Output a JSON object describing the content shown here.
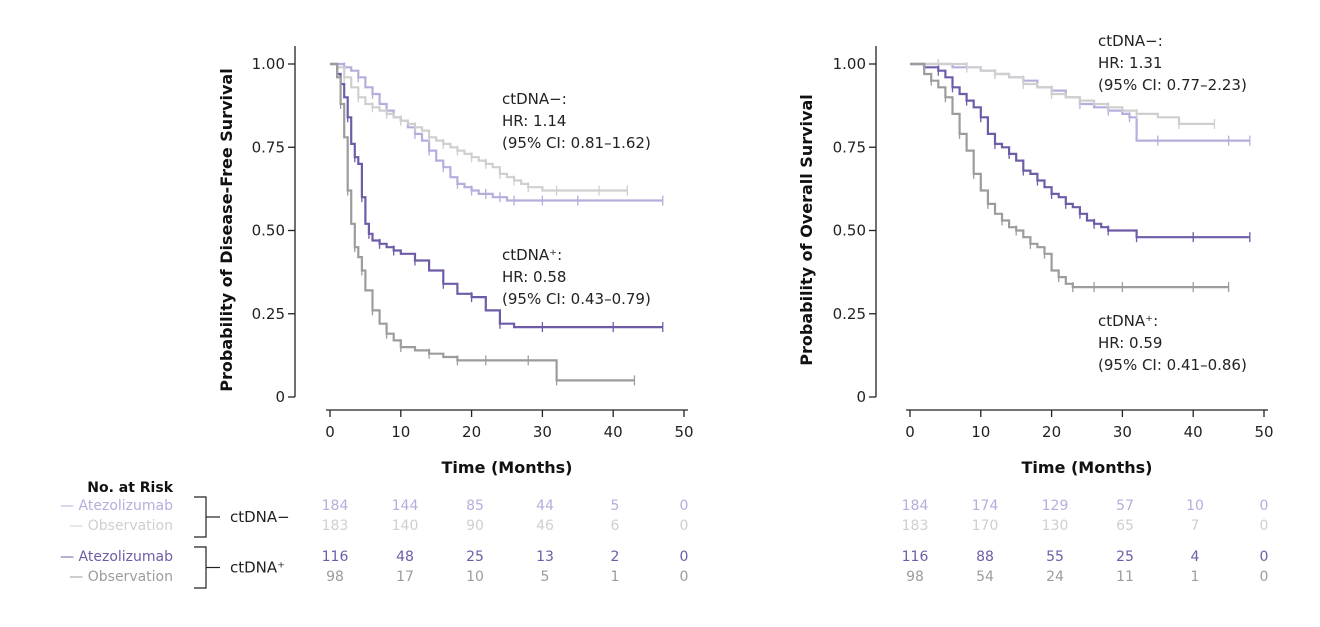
{
  "colors": {
    "atezo_neg": "#b5aedd",
    "obs_neg": "#cfcfcf",
    "atezo_pos": "#6f5ca8",
    "obs_pos": "#9c9c9c",
    "text": "#222222"
  },
  "chart_data": [
    {
      "type": "line",
      "ylabel": "Probability of Disease-Free Survival",
      "xlabel": "Time (Months)",
      "xlim": [
        0,
        50
      ],
      "ylim": [
        0,
        1
      ],
      "xticks": [
        "0",
        "10",
        "20",
        "30",
        "40",
        "50"
      ],
      "yticks": [
        "0",
        "0.25",
        "0.50",
        "0.75",
        "1.00"
      ],
      "annotations": [
        {
          "key": "neg",
          "lines": [
            "ctDNA−:",
            "HR: 1.14",
            "(95% CI: 0.81–1.62)"
          ]
        },
        {
          "key": "pos",
          "lines": [
            "ctDNA⁺:",
            "HR: 0.58",
            "(95% CI: 0.43–0.79)"
          ]
        }
      ],
      "series": [
        {
          "group": "ctDNA−",
          "arm": "Atezolizumab",
          "color_key": "atezo_neg",
          "x": [
            0,
            1,
            2,
            3,
            4,
            5,
            6,
            7,
            8,
            9,
            10,
            11,
            12,
            13,
            14,
            15,
            16,
            17,
            18,
            19,
            20,
            21,
            22,
            23,
            24,
            25,
            26,
            28,
            30,
            32,
            35,
            40,
            47
          ],
          "y": [
            1.0,
            1.0,
            0.99,
            0.98,
            0.96,
            0.93,
            0.91,
            0.88,
            0.86,
            0.84,
            0.83,
            0.81,
            0.79,
            0.77,
            0.74,
            0.71,
            0.69,
            0.66,
            0.64,
            0.63,
            0.62,
            0.61,
            0.61,
            0.6,
            0.6,
            0.59,
            0.59,
            0.59,
            0.59,
            0.59,
            0.59,
            0.59,
            0.59
          ]
        },
        {
          "group": "ctDNA−",
          "arm": "Observation",
          "color_key": "obs_neg",
          "x": [
            0,
            1,
            2,
            3,
            4,
            5,
            6,
            7,
            8,
            9,
            10,
            11,
            12,
            13,
            14,
            15,
            16,
            17,
            18,
            19,
            20,
            21,
            22,
            23,
            24,
            25,
            26,
            27,
            28,
            30,
            32,
            35,
            38,
            42
          ],
          "y": [
            1.0,
            0.99,
            0.96,
            0.93,
            0.9,
            0.88,
            0.87,
            0.86,
            0.85,
            0.84,
            0.83,
            0.82,
            0.81,
            0.8,
            0.78,
            0.77,
            0.76,
            0.75,
            0.74,
            0.73,
            0.72,
            0.71,
            0.7,
            0.69,
            0.67,
            0.66,
            0.65,
            0.64,
            0.63,
            0.62,
            0.62,
            0.62,
            0.62,
            0.62
          ]
        },
        {
          "group": "ctDNA⁺",
          "arm": "Atezolizumab",
          "color_key": "atezo_pos",
          "x": [
            0,
            1,
            1.5,
            2,
            2.5,
            3,
            3.5,
            4,
            4.5,
            5,
            5.5,
            6,
            7,
            8,
            9,
            10,
            12,
            14,
            16,
            18,
            20,
            22,
            24,
            26,
            30,
            35,
            40,
            47
          ],
          "y": [
            1.0,
            0.97,
            0.94,
            0.9,
            0.84,
            0.76,
            0.72,
            0.7,
            0.6,
            0.52,
            0.49,
            0.47,
            0.46,
            0.45,
            0.44,
            0.43,
            0.41,
            0.38,
            0.34,
            0.31,
            0.3,
            0.26,
            0.22,
            0.21,
            0.21,
            0.21,
            0.21,
            0.21
          ]
        },
        {
          "group": "ctDNA⁺",
          "arm": "Observation",
          "color_key": "obs_pos",
          "x": [
            0,
            1,
            1.5,
            2,
            2.5,
            3,
            3.5,
            4,
            4.5,
            5,
            6,
            7,
            8,
            9,
            10,
            12,
            14,
            16,
            18,
            20,
            22,
            25,
            28,
            32,
            32.01,
            43
          ],
          "y": [
            1.0,
            0.96,
            0.88,
            0.78,
            0.62,
            0.52,
            0.45,
            0.42,
            0.38,
            0.32,
            0.26,
            0.22,
            0.19,
            0.17,
            0.15,
            0.14,
            0.13,
            0.12,
            0.11,
            0.11,
            0.11,
            0.11,
            0.11,
            0.11,
            0.05,
            0.05
          ]
        }
      ]
    },
    {
      "type": "line",
      "ylabel": "Probability of Overall Survival",
      "xlabel": "Time (Months)",
      "xlim": [
        0,
        50
      ],
      "ylim": [
        0,
        1
      ],
      "xticks": [
        "0",
        "10",
        "20",
        "30",
        "40",
        "50"
      ],
      "yticks": [
        "0",
        "0.25",
        "0.50",
        "0.75",
        "1.00"
      ],
      "annotations": [
        {
          "key": "neg",
          "lines": [
            "ctDNA−:",
            "HR: 1.31",
            "(95% CI: 0.77–2.23)"
          ]
        },
        {
          "key": "pos",
          "lines": [
            "ctDNA⁺:",
            "HR: 0.59",
            "(95% CI: 0.41–0.86)"
          ]
        }
      ],
      "series": [
        {
          "group": "ctDNA−",
          "arm": "Atezolizumab",
          "color_key": "atezo_neg",
          "x": [
            0,
            2,
            4,
            6,
            8,
            10,
            12,
            14,
            16,
            18,
            20,
            22,
            24,
            26,
            28,
            30,
            31,
            32,
            35,
            40,
            45,
            48
          ],
          "y": [
            1.0,
            1.0,
            1.0,
            0.99,
            0.99,
            0.98,
            0.97,
            0.96,
            0.95,
            0.93,
            0.92,
            0.9,
            0.88,
            0.87,
            0.86,
            0.85,
            0.84,
            0.77,
            0.77,
            0.77,
            0.77,
            0.77
          ]
        },
        {
          "group": "ctDNA−",
          "arm": "Observation",
          "color_key": "obs_neg",
          "x": [
            0,
            2,
            4,
            6,
            8,
            10,
            12,
            14,
            16,
            18,
            20,
            22,
            24,
            26,
            28,
            30,
            32,
            35,
            38,
            40,
            43
          ],
          "y": [
            1.0,
            1.0,
            1.0,
            1.0,
            0.99,
            0.98,
            0.97,
            0.96,
            0.94,
            0.93,
            0.91,
            0.9,
            0.89,
            0.88,
            0.87,
            0.86,
            0.85,
            0.84,
            0.82,
            0.82,
            0.82
          ]
        },
        {
          "group": "ctDNA⁺",
          "arm": "Atezolizumab",
          "color_key": "atezo_pos",
          "x": [
            0,
            2,
            4,
            5,
            6,
            7,
            8,
            9,
            10,
            11,
            12,
            13,
            14,
            15,
            16,
            17,
            18,
            19,
            20,
            21,
            22,
            23,
            24,
            25,
            26,
            27,
            28,
            30,
            32,
            35,
            40,
            45,
            48
          ],
          "y": [
            1.0,
            0.99,
            0.98,
            0.96,
            0.93,
            0.91,
            0.89,
            0.87,
            0.84,
            0.79,
            0.76,
            0.75,
            0.73,
            0.71,
            0.68,
            0.67,
            0.65,
            0.63,
            0.61,
            0.6,
            0.58,
            0.57,
            0.55,
            0.53,
            0.52,
            0.51,
            0.5,
            0.5,
            0.48,
            0.48,
            0.48,
            0.48,
            0.48
          ]
        },
        {
          "group": "ctDNA⁺",
          "arm": "Observation",
          "color_key": "obs_pos",
          "x": [
            0,
            2,
            3,
            4,
            5,
            6,
            7,
            8,
            9,
            10,
            11,
            12,
            13,
            14,
            15,
            16,
            17,
            18,
            19,
            20,
            21,
            22,
            23,
            24,
            26,
            28,
            30,
            35,
            40,
            45
          ],
          "y": [
            1.0,
            0.97,
            0.95,
            0.93,
            0.9,
            0.85,
            0.79,
            0.74,
            0.67,
            0.62,
            0.58,
            0.55,
            0.53,
            0.51,
            0.5,
            0.48,
            0.46,
            0.45,
            0.43,
            0.38,
            0.36,
            0.34,
            0.33,
            0.33,
            0.33,
            0.33,
            0.33,
            0.33,
            0.33,
            0.33
          ]
        }
      ]
    }
  ],
  "risk_table": {
    "title": "No. at Risk",
    "groups": [
      {
        "label": "ctDNA−",
        "arms": [
          {
            "name": "— Atezolizumab",
            "color_key": "atezo_neg",
            "left": [
              "184",
              "144",
              "85",
              "44",
              "5",
              "0"
            ],
            "right": [
              "184",
              "174",
              "129",
              "57",
              "10",
              "0"
            ]
          },
          {
            "name": "— Observation",
            "color_key": "obs_neg",
            "left": [
              "183",
              "140",
              "90",
              "46",
              "6",
              "0"
            ],
            "right": [
              "183",
              "170",
              "130",
              "65",
              "7",
              "0"
            ]
          }
        ]
      },
      {
        "label": "ctDNA⁺",
        "arms": [
          {
            "name": "— Atezolizumab",
            "color_key": "atezo_pos",
            "left": [
              "116",
              "48",
              "25",
              "13",
              "2",
              "0"
            ],
            "right": [
              "116",
              "88",
              "55",
              "25",
              "4",
              "0"
            ]
          },
          {
            "name": "— Observation",
            "color_key": "obs_pos",
            "left": [
              "98",
              "17",
              "10",
              "5",
              "1",
              "0"
            ],
            "right": [
              "98",
              "54",
              "24",
              "11",
              "1",
              "0"
            ]
          }
        ]
      }
    ]
  }
}
